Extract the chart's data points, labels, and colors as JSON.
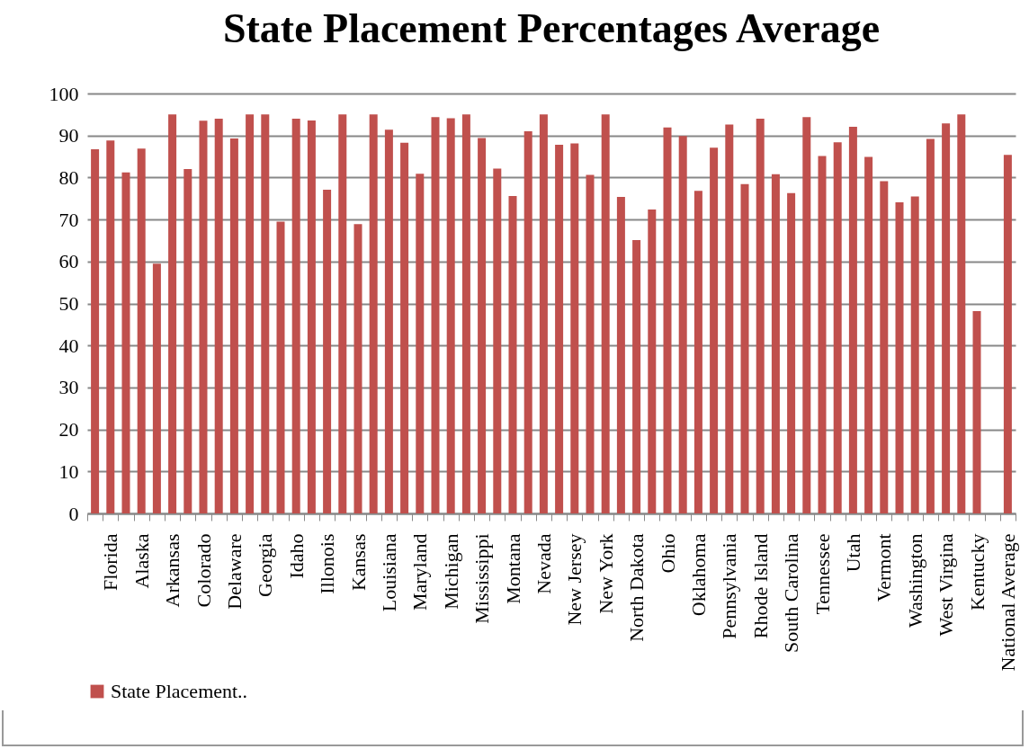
{
  "chart_data": {
    "type": "bar",
    "title": "State Placement Percentages Average",
    "categories": [
      null,
      "Florida",
      null,
      "Alaska",
      null,
      "Arkansas",
      null,
      "Colorado",
      null,
      "Delaware",
      null,
      "Georgia",
      null,
      "Idaho",
      null,
      "Illonois",
      null,
      "Kansas",
      null,
      "Louisiana",
      null,
      "Maryland",
      null,
      "Michigan",
      null,
      "Mississippi",
      null,
      "Montana",
      null,
      "Nevada",
      null,
      "New Jersey",
      null,
      "New York",
      null,
      "North Dakota",
      null,
      "Ohio",
      null,
      "Oklahoma",
      null,
      "Pennsylvania",
      null,
      "Rhode Island",
      null,
      "South Carolina",
      null,
      "Tennessee",
      null,
      "Utah",
      null,
      "Vermont",
      null,
      "Washington",
      null,
      "West Virgina",
      null,
      "Kentucky",
      null,
      "National Average"
    ],
    "series": [
      {
        "name": "State Placement..",
        "color": "#c0504d",
        "values": [
          86.7,
          88.8,
          81.2,
          86.9,
          59.5,
          95,
          82,
          93.5,
          94,
          89.3,
          95,
          95,
          69.5,
          94,
          93.6,
          77.1,
          95,
          68.9,
          95,
          91.4,
          88.3,
          80.9,
          94.4,
          94.1,
          95,
          89.4,
          82.1,
          75.6,
          91,
          95,
          87.8,
          88.1,
          80.6,
          95,
          75.4,
          65.1,
          72.4,
          91.9,
          89.9,
          76.8,
          87.1,
          92.6,
          78.4,
          94,
          80.8,
          76.3,
          94.4,
          85.1,
          88.4,
          92.1,
          84.9,
          79.1,
          74.1,
          75.5,
          89.2,
          92.9,
          95,
          48.2,
          null,
          85.4
        ]
      }
    ],
    "ylim": [
      0,
      100
    ],
    "yticks": [
      0,
      10,
      20,
      30,
      40,
      50,
      60,
      70,
      80,
      90,
      100
    ],
    "grid": "y",
    "legend": "bottom"
  }
}
